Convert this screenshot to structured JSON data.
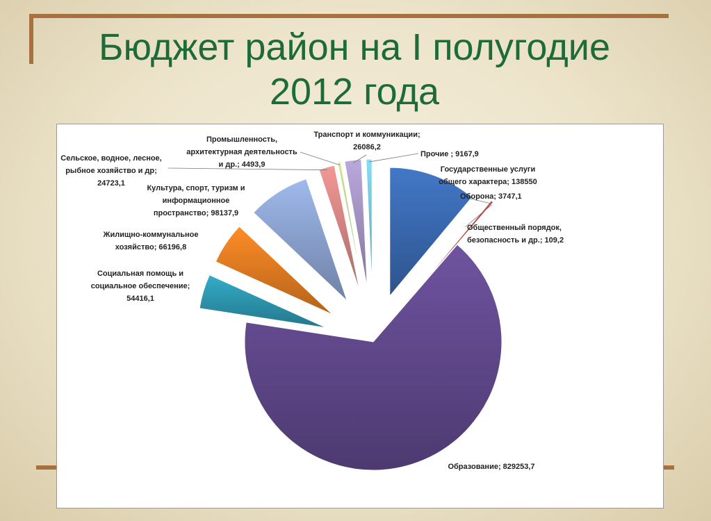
{
  "title_line1": "Бюджет район на I полугодие",
  "title_line2": "2012 года",
  "colors": {
    "title": "#1e6b3a",
    "frame": "#a7703f"
  },
  "chart_data": {
    "type": "pie",
    "title": "",
    "legend": "none",
    "series": [
      {
        "slices": [
          {
            "label": "Государственные услуги общего характера",
            "value": 138550,
            "data_label": [
              "Государственные услуги",
              "общего характера; 138550"
            ],
            "color": "#3b6bb3"
          },
          {
            "label": "Оборона",
            "value": 3747.1,
            "data_label": [
              "Оборона; 3747,1"
            ],
            "color": "#b23b36"
          },
          {
            "label": "Общественный порядок, безопасность и др.",
            "value": 109.2,
            "data_label": [
              "Общественный порядок,",
              "безопасность  и др.; 109,2"
            ],
            "color": "#8aa94b"
          },
          {
            "label": "Образование",
            "value": 829253.7,
            "data_label": [
              "Образование; 829253,7"
            ],
            "color": "#634a8f"
          },
          {
            "label": "Социальная помощь и социальное обеспечение",
            "value": 54416.1,
            "data_label": [
              "Социальная помощь и",
              "социальное обеспечение;",
              "54416,1"
            ],
            "color": "#2e9ab3"
          },
          {
            "label": "Жилищно-коммунальное хозяйство",
            "value": 66196.8,
            "data_label": [
              "Жилищно-коммунальное",
              "хозяйство; 66196,8"
            ],
            "color": "#e77e22"
          },
          {
            "label": "Культура, спорт, туризм и информационное пространство",
            "value": 98137.9,
            "data_label": [
              "Культура, спорт, туризм и",
              "информационное",
              "пространство; 98137,9"
            ],
            "color": "#8ea6d4"
          },
          {
            "label": "Сельское, водное, лесное, рыбное хозяйство и др",
            "value": 24723.1,
            "data_label": [
              "Сельское, водное, лесное,",
              "рыбное хозяйство и др;",
              "24723,1"
            ],
            "color": "#d98885"
          },
          {
            "label": "Промышленность, архитектурная деятельность и др.",
            "value": 4493.9,
            "data_label": [
              "Промышленность,",
              "архитектурная деятельность",
              "и др.; 4493,9"
            ],
            "color": "#b9cf82"
          },
          {
            "label": "Транспорт и коммуникации",
            "value": 26086.2,
            "data_label": [
              "Транспорт и коммуникации;",
              "26086,2"
            ],
            "color": "#a796c6"
          },
          {
            "label": "Прочие",
            "value": 9167.9,
            "data_label": [
              "Прочие ; 9167,9"
            ],
            "color": "#78c6dc"
          }
        ]
      }
    ]
  }
}
